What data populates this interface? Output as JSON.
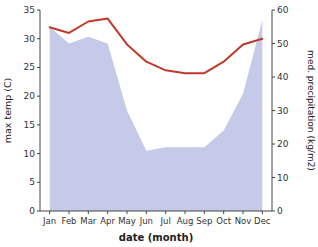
{
  "chart_data": {
    "type": "line",
    "categories": [
      "Jan",
      "Feb",
      "Mar",
      "Apr",
      "May",
      "Jun",
      "Jul",
      "Aug",
      "Sep",
      "Oct",
      "Nov",
      "Dec"
    ],
    "series": [
      {
        "type": "area",
        "axis": "y2",
        "color": "#c5cae9",
        "values": [
          55,
          50,
          52,
          50,
          30,
          18,
          19,
          19,
          19,
          24,
          35,
          57
        ]
      },
      {
        "type": "line",
        "color": "#c0392b",
        "values": [
          32.0,
          31.0,
          33.0,
          33.5,
          29.0,
          26.0,
          24.5,
          24.0,
          24.0,
          26.0,
          29.0,
          30.0
        ]
      }
    ],
    "xlabel": "date (month)",
    "ylabel": "max temp (C)",
    "y2label": "med. precipitation (kg/m2)",
    "ylim": [
      0,
      35
    ],
    "yticks": [
      0,
      5,
      10,
      15,
      20,
      25,
      30,
      35
    ],
    "y2lim": [
      0,
      60
    ],
    "y2ticks": [
      0,
      10,
      20,
      30,
      40,
      50,
      60
    ],
    "grid": false
  }
}
